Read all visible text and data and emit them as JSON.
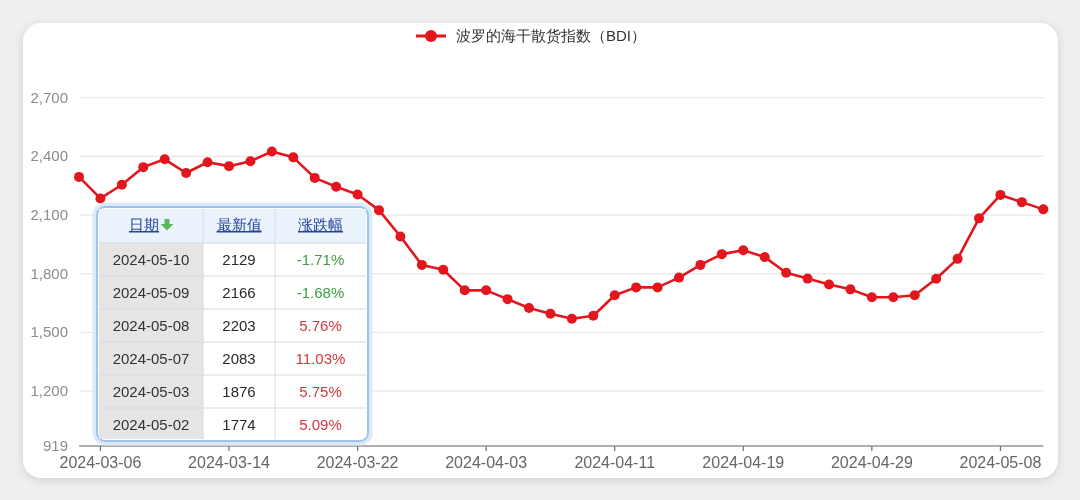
{
  "chart_data": [
    {
      "type": "line",
      "categories": [
        null,
        "2024-03-06",
        null,
        null,
        null,
        null,
        null,
        "2024-03-14",
        null,
        null,
        null,
        null,
        null,
        "2024-03-22",
        null,
        null,
        null,
        null,
        null,
        "2024-04-03",
        null,
        null,
        null,
        null,
        null,
        "2024-04-11",
        null,
        null,
        null,
        null,
        null,
        "2024-04-19",
        null,
        null,
        null,
        null,
        null,
        "2024-04-29",
        null,
        null,
        null,
        null,
        null,
        "2024-05-08",
        null,
        null
      ],
      "series": [
        {
          "name": "波罗的海干散货指数（BDI）",
          "color": "#e3161d",
          "values": [
            2295,
            2185,
            2255,
            2345,
            2385,
            2315,
            2370,
            2350,
            2375,
            2425,
            2395,
            2290,
            2245,
            2205,
            2125,
            1990,
            1845,
            1820,
            1715,
            1715,
            1670,
            1625,
            1595,
            1570,
            1585,
            1690,
            1730,
            1730,
            1780,
            1845,
            1900,
            1920,
            1885,
            1805,
            1775,
            1745,
            1720,
            1680,
            1680,
            1690,
            1774,
            1876,
            2083,
            2203,
            2166,
            2129
          ]
        }
      ],
      "ylim": [
        919,
        2700
      ],
      "yticks": [
        919,
        {
          "value": 1200,
          "label": "1,200"
        },
        {
          "value": 1500,
          "label": "1,500"
        },
        {
          "value": 1800,
          "label": "1,800"
        },
        {
          "value": 2100,
          "label": "2,100"
        },
        {
          "value": 2400,
          "label": "2,400"
        },
        {
          "value": 2700,
          "label": "2,700"
        }
      ],
      "grid": "y",
      "legend": "top",
      "marker": "circle",
      "line_style": "solid"
    },
    {
      "type": "other",
      "categories": [
        "日期",
        "最新值",
        "涨跌幅"
      ],
      "y_categories": [
        "2024-05-10",
        "2024-05-09",
        "2024-05-08",
        "2024-05-07",
        "2024-05-03",
        "2024-05-02"
      ],
      "cell_labels": [
        [
          "2129",
          "-1.71%"
        ],
        [
          "2166",
          "-1.68%"
        ],
        [
          "2203",
          "5.76%"
        ],
        [
          "2083",
          "11.03%"
        ],
        [
          "1876",
          "5.75%"
        ],
        [
          "1774",
          "5.09%"
        ]
      ],
      "colors": [
        "#3f9d3f",
        "#3f9d3f",
        "#d8343c",
        "#d8343c",
        "#d8343c",
        "#d8343c"
      ]
    }
  ]
}
